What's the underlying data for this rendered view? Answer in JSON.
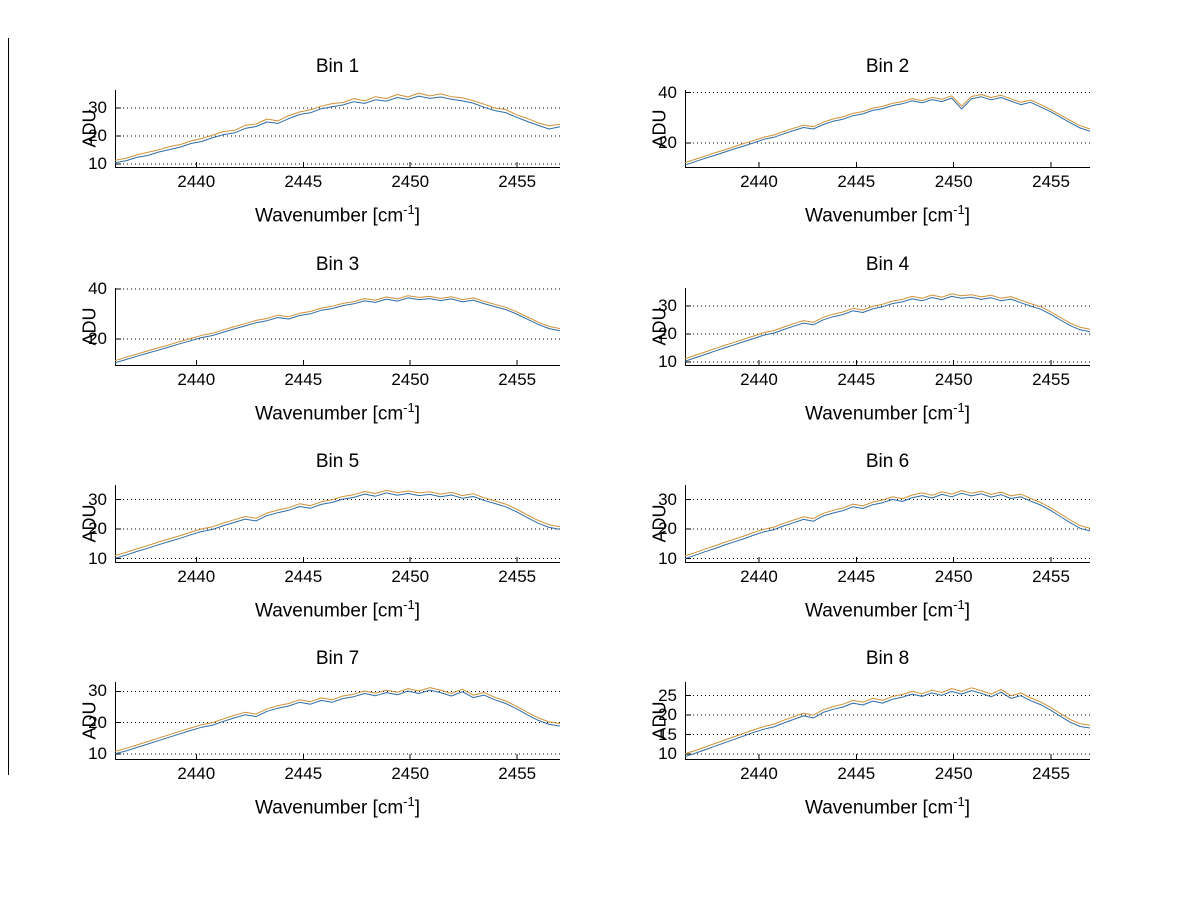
{
  "figure": {
    "background": "#ffffff"
  },
  "common": {
    "ylabel": "ADU",
    "xlabel_prefix": "Wavenumber [cm",
    "xlabel_sup": "-1",
    "xlabel_suffix": "]"
  },
  "style": {
    "grid_color": "#000000",
    "axis_color": "#000000",
    "series_color_orange": "#cf9136",
    "series_color_blue": "#2e6da4"
  },
  "chart_data": [
    {
      "type": "line",
      "title": "Bin 1",
      "xlabel": "Wavenumber [cm-1]",
      "ylabel": "ADU",
      "xlim": [
        2436.2,
        2457.0
      ],
      "ylim": [
        8.5,
        36.5
      ],
      "xticks": [
        2440,
        2445,
        2450,
        2455
      ],
      "yticks": [
        10,
        20,
        30
      ],
      "grid": "dotted-horizontal",
      "legend": "none",
      "series": [
        {
          "name": "trace-upper",
          "color": "#cf9136",
          "values": [
            11.3,
            12.0,
            13.2,
            14.1,
            15.0,
            16.2,
            16.9,
            18.2,
            19.1,
            20.3,
            21.6,
            22.0,
            23.8,
            24.3,
            26.1,
            25.4,
            27.3,
            28.6,
            29.4,
            30.7,
            31.6,
            32.0,
            33.4,
            32.6,
            34.1,
            33.4,
            34.9,
            34.0,
            35.4,
            34.4,
            35.1,
            34.1,
            33.7,
            32.7,
            31.4,
            30.0,
            29.5,
            27.6,
            26.3,
            24.7,
            23.6,
            24.2
          ]
        },
        {
          "name": "trace-lower",
          "color": "#2e6da4",
          "values": [
            10.4,
            11.1,
            12.3,
            13.0,
            14.2,
            15.1,
            16.0,
            17.3,
            18.0,
            19.4,
            20.5,
            21.1,
            22.7,
            23.4,
            25.0,
            24.5,
            26.2,
            27.7,
            28.3,
            29.8,
            30.5,
            31.1,
            32.3,
            31.7,
            33.0,
            32.5,
            33.8,
            33.1,
            34.3,
            33.5,
            34.0,
            33.2,
            32.6,
            31.8,
            30.3,
            29.1,
            28.4,
            26.7,
            25.2,
            23.8,
            22.5,
            23.3
          ]
        }
      ]
    },
    {
      "type": "line",
      "title": "Bin 2",
      "xlabel": "Wavenumber [cm-1]",
      "ylabel": "ADU",
      "xlim": [
        2436.2,
        2457.0
      ],
      "ylim": [
        10,
        41
      ],
      "xticks": [
        2440,
        2445,
        2450,
        2455
      ],
      "yticks": [
        20,
        40
      ],
      "grid": "dotted-horizontal",
      "legend": "none",
      "series": [
        {
          "name": "trace-upper",
          "color": "#cf9136",
          "values": [
            12.1,
            13.4,
            14.7,
            16.0,
            17.2,
            18.5,
            19.8,
            21.0,
            22.3,
            23.1,
            24.5,
            25.8,
            27.0,
            26.4,
            28.2,
            29.5,
            30.3,
            31.7,
            32.4,
            33.8,
            34.5,
            35.7,
            36.4,
            37.6,
            36.8,
            38.1,
            37.3,
            38.7,
            34.6,
            38.4,
            39.2,
            38.0,
            38.9,
            37.5,
            36.1,
            37.0,
            35.2,
            33.3,
            31.1,
            28.9,
            26.8,
            25.5
          ]
        },
        {
          "name": "trace-lower",
          "color": "#2e6da4",
          "values": [
            11.2,
            12.5,
            13.8,
            15.0,
            16.3,
            17.6,
            18.8,
            20.1,
            21.4,
            22.2,
            23.6,
            24.9,
            26.1,
            25.5,
            27.3,
            28.6,
            29.4,
            30.8,
            31.5,
            32.9,
            33.6,
            34.8,
            35.5,
            36.7,
            35.9,
            37.2,
            36.4,
            37.8,
            33.5,
            37.5,
            38.3,
            37.1,
            38.0,
            36.6,
            35.2,
            36.1,
            34.3,
            32.4,
            30.2,
            28.0,
            25.9,
            24.6
          ]
        }
      ]
    },
    {
      "type": "line",
      "title": "Bin 3",
      "xlabel": "Wavenumber [cm-1]",
      "ylabel": "ADU",
      "xlim": [
        2436.2,
        2457.0
      ],
      "ylim": [
        9,
        40.5
      ],
      "xticks": [
        2440,
        2445,
        2450,
        2455
      ],
      "yticks": [
        20,
        40
      ],
      "grid": "dotted-horizontal",
      "legend": "none",
      "series": [
        {
          "name": "trace-upper",
          "color": "#cf9136",
          "values": [
            11.2,
            12.5,
            13.8,
            15.1,
            16.3,
            17.6,
            18.9,
            20.1,
            21.4,
            22.2,
            23.6,
            24.9,
            26.1,
            27.4,
            28.2,
            29.5,
            28.9,
            30.3,
            31.0,
            32.4,
            33.1,
            34.3,
            35.0,
            36.2,
            35.6,
            36.9,
            36.1,
            37.4,
            36.7,
            37.1,
            36.3,
            37.0,
            35.8,
            36.5,
            35.1,
            33.9,
            32.7,
            30.9,
            28.8,
            26.7,
            25.0,
            24.1
          ]
        },
        {
          "name": "trace-lower",
          "color": "#2e6da4",
          "values": [
            10.3,
            11.6,
            12.9,
            14.2,
            15.4,
            16.7,
            18.0,
            19.2,
            20.5,
            21.3,
            22.7,
            24.0,
            25.2,
            26.5,
            27.3,
            28.6,
            28.0,
            29.4,
            30.1,
            31.5,
            32.2,
            33.4,
            34.1,
            35.3,
            34.7,
            36.0,
            35.2,
            36.5,
            35.8,
            36.2,
            35.4,
            36.1,
            34.9,
            35.6,
            34.2,
            33.0,
            31.8,
            30.0,
            27.9,
            25.8,
            24.1,
            23.2
          ]
        }
      ]
    },
    {
      "type": "line",
      "title": "Bin 4",
      "xlabel": "Wavenumber [cm-1]",
      "ylabel": "ADU",
      "xlim": [
        2436.2,
        2457.0
      ],
      "ylim": [
        8.5,
        36.5
      ],
      "xticks": [
        2440,
        2445,
        2450,
        2455
      ],
      "yticks": [
        10,
        20,
        30
      ],
      "grid": "dotted-horizontal",
      "legend": "none",
      "series": [
        {
          "name": "trace-upper",
          "color": "#cf9136",
          "values": [
            11.1,
            12.3,
            13.5,
            14.7,
            15.9,
            17.0,
            18.2,
            19.3,
            20.5,
            21.2,
            22.5,
            23.7,
            24.8,
            24.2,
            26.0,
            27.1,
            27.9,
            29.2,
            28.6,
            29.9,
            30.7,
            31.8,
            32.4,
            33.5,
            32.8,
            34.0,
            33.2,
            34.4,
            33.7,
            34.1,
            33.3,
            33.9,
            32.8,
            33.4,
            32.1,
            30.9,
            29.8,
            28.0,
            25.9,
            23.9,
            22.4,
            21.7
          ]
        },
        {
          "name": "trace-lower",
          "color": "#2e6da4",
          "values": [
            10.2,
            11.4,
            12.6,
            13.8,
            15.0,
            16.1,
            17.3,
            18.4,
            19.6,
            20.3,
            21.6,
            22.8,
            23.9,
            23.3,
            25.1,
            26.2,
            27.0,
            28.3,
            27.7,
            29.0,
            29.8,
            30.9,
            31.5,
            32.6,
            31.9,
            33.1,
            32.3,
            33.5,
            32.8,
            33.2,
            32.4,
            33.0,
            31.9,
            32.5,
            31.2,
            30.0,
            28.9,
            27.1,
            25.0,
            23.0,
            21.5,
            20.8
          ]
        }
      ]
    },
    {
      "type": "line",
      "title": "Bin 5",
      "xlabel": "Wavenumber [cm-1]",
      "ylabel": "ADU",
      "xlim": [
        2436.2,
        2457.0
      ],
      "ylim": [
        8.5,
        35
      ],
      "xticks": [
        2440,
        2445,
        2450,
        2455
      ],
      "yticks": [
        10,
        20,
        30
      ],
      "grid": "dotted-horizontal",
      "legend": "none",
      "series": [
        {
          "name": "trace-upper",
          "color": "#cf9136",
          "values": [
            11.0,
            12.1,
            13.3,
            14.4,
            15.6,
            16.7,
            17.8,
            19.0,
            20.1,
            20.8,
            22.1,
            23.2,
            24.3,
            23.7,
            25.5,
            26.5,
            27.3,
            28.6,
            28.0,
            29.3,
            30.0,
            31.1,
            31.7,
            32.8,
            32.1,
            33.2,
            32.4,
            33.0,
            32.3,
            32.7,
            31.9,
            32.5,
            31.4,
            32.0,
            30.7,
            29.6,
            28.5,
            26.8,
            24.8,
            22.9,
            21.5,
            20.8
          ]
        },
        {
          "name": "trace-lower",
          "color": "#2e6da4",
          "values": [
            10.1,
            11.2,
            12.4,
            13.5,
            14.7,
            15.8,
            16.9,
            18.1,
            19.2,
            19.9,
            21.2,
            22.3,
            23.4,
            22.8,
            24.6,
            25.6,
            26.4,
            27.7,
            27.1,
            28.4,
            29.1,
            30.2,
            30.8,
            31.9,
            31.2,
            32.3,
            31.5,
            32.1,
            31.4,
            31.8,
            31.0,
            31.6,
            30.5,
            31.1,
            29.8,
            28.7,
            27.6,
            25.9,
            23.9,
            22.0,
            20.6,
            19.9
          ]
        }
      ]
    },
    {
      "type": "line",
      "title": "Bin 6",
      "xlabel": "Wavenumber [cm-1]",
      "ylabel": "ADU",
      "xlim": [
        2436.2,
        2457.0
      ],
      "ylim": [
        8.5,
        35
      ],
      "xticks": [
        2440,
        2445,
        2450,
        2455
      ],
      "yticks": [
        10,
        20,
        30
      ],
      "grid": "dotted-horizontal",
      "legend": "none",
      "series": [
        {
          "name": "trace-upper",
          "color": "#cf9136",
          "values": [
            10.9,
            12.0,
            13.2,
            14.3,
            15.5,
            16.6,
            17.7,
            18.9,
            20.0,
            20.7,
            22.0,
            23.1,
            24.2,
            23.6,
            25.4,
            26.4,
            27.2,
            28.5,
            27.9,
            29.2,
            29.9,
            31.0,
            30.3,
            31.6,
            32.3,
            31.5,
            32.7,
            31.9,
            33.1,
            32.2,
            32.9,
            31.8,
            32.6,
            31.3,
            31.9,
            30.4,
            29.1,
            27.3,
            25.2,
            23.1,
            21.2,
            20.3
          ]
        },
        {
          "name": "trace-lower",
          "color": "#2e6da4",
          "values": [
            10.0,
            11.1,
            12.3,
            13.4,
            14.6,
            15.7,
            16.8,
            18.0,
            19.1,
            19.8,
            21.1,
            22.2,
            23.3,
            22.7,
            24.5,
            25.5,
            26.3,
            27.6,
            27.0,
            28.3,
            29.0,
            30.1,
            29.4,
            30.7,
            31.4,
            30.6,
            31.8,
            31.0,
            32.2,
            31.3,
            32.0,
            30.9,
            31.7,
            30.4,
            31.0,
            29.5,
            28.2,
            26.4,
            24.3,
            22.2,
            20.3,
            19.4
          ]
        }
      ]
    },
    {
      "type": "line",
      "title": "Bin 7",
      "xlabel": "Wavenumber [cm-1]",
      "ylabel": "ADU",
      "xlim": [
        2436.2,
        2457.0
      ],
      "ylim": [
        8,
        33
      ],
      "xticks": [
        2440,
        2445,
        2450,
        2455
      ],
      "yticks": [
        10,
        20,
        30
      ],
      "grid": "dotted-horizontal",
      "legend": "none",
      "series": [
        {
          "name": "trace-upper",
          "color": "#cf9136",
          "values": [
            10.8,
            11.7,
            12.8,
            13.9,
            15.0,
            16.1,
            17.2,
            18.3,
            19.3,
            20.0,
            21.2,
            22.3,
            23.3,
            22.7,
            24.4,
            25.4,
            26.1,
            27.3,
            26.7,
            27.9,
            27.3,
            28.5,
            29.1,
            30.1,
            29.4,
            30.4,
            29.7,
            30.9,
            30.1,
            31.2,
            30.4,
            29.3,
            30.7,
            28.8,
            29.6,
            28.1,
            26.9,
            25.2,
            23.3,
            21.5,
            20.2,
            19.7
          ]
        },
        {
          "name": "trace-lower",
          "color": "#2e6da4",
          "values": [
            10.0,
            10.9,
            12.0,
            13.1,
            14.2,
            15.3,
            16.4,
            17.5,
            18.5,
            19.2,
            20.4,
            21.5,
            22.5,
            21.9,
            23.6,
            24.6,
            25.3,
            26.5,
            25.9,
            27.1,
            26.5,
            27.7,
            28.3,
            29.3,
            28.6,
            29.6,
            28.9,
            30.1,
            29.3,
            30.4,
            29.6,
            28.5,
            29.9,
            28.0,
            28.8,
            27.3,
            26.1,
            24.4,
            22.5,
            20.7,
            19.4,
            18.9
          ]
        }
      ]
    },
    {
      "type": "line",
      "title": "Bin 8",
      "xlabel": "Wavenumber [cm-1]",
      "ylabel": "ADU",
      "xlim": [
        2436.2,
        2457.0
      ],
      "ylim": [
        8.5,
        28.5
      ],
      "xticks": [
        2440,
        2445,
        2450,
        2455
      ],
      "yticks": [
        10,
        15,
        20,
        25
      ],
      "grid": "dotted-horizontal",
      "legend": "none",
      "series": [
        {
          "name": "trace-upper",
          "color": "#cf9136",
          "values": [
            10.1,
            10.9,
            11.8,
            12.7,
            13.6,
            14.5,
            15.4,
            16.3,
            17.1,
            17.7,
            18.7,
            19.6,
            20.5,
            20.0,
            21.4,
            22.2,
            22.8,
            23.8,
            23.3,
            24.3,
            23.8,
            24.8,
            25.3,
            26.1,
            25.5,
            26.4,
            25.8,
            26.8,
            26.1,
            27.0,
            26.3,
            25.4,
            26.6,
            25.0,
            25.7,
            24.4,
            23.4,
            22.0,
            20.4,
            18.9,
            17.8,
            17.4
          ]
        },
        {
          "name": "trace-lower",
          "color": "#2e6da4",
          "values": [
            9.4,
            10.2,
            11.1,
            12.0,
            12.9,
            13.8,
            14.7,
            15.6,
            16.4,
            17.0,
            18.0,
            18.9,
            19.8,
            19.3,
            20.7,
            21.5,
            22.1,
            23.1,
            22.6,
            23.6,
            23.1,
            24.1,
            24.6,
            25.4,
            24.8,
            25.7,
            25.1,
            26.1,
            25.4,
            26.3,
            25.6,
            24.7,
            25.9,
            24.3,
            25.0,
            23.7,
            22.7,
            21.3,
            19.7,
            18.2,
            17.1,
            16.7
          ]
        }
      ]
    }
  ]
}
